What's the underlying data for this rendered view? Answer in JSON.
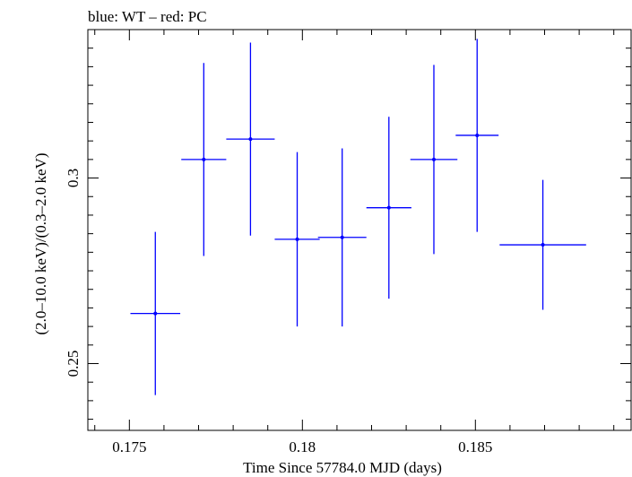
{
  "chart_data": {
    "type": "scatter",
    "title": "blue: WT – red: PC",
    "xlabel": "Time Since 57784.0 MJD (days)",
    "ylabel": "(2.0–10.0 keV)/(0.3–2.0 keV)",
    "xlim": [
      0.1738,
      0.1895
    ],
    "ylim": [
      0.232,
      0.34
    ],
    "x_ticks": [
      {
        "value": 0.175,
        "label": "0.175"
      },
      {
        "value": 0.18,
        "label": "0.18"
      },
      {
        "value": 0.185,
        "label": "0.185"
      }
    ],
    "y_ticks": [
      {
        "value": 0.25,
        "label": "0.25"
      },
      {
        "value": 0.3,
        "label": "0.3"
      }
    ],
    "grid": false,
    "legend": "none",
    "series": [
      {
        "color": "#0000ff",
        "points": [
          {
            "x": 0.17575,
            "xerr": 0.00072,
            "y": 0.2635,
            "yerr": 0.022
          },
          {
            "x": 0.17715,
            "xerr": 0.00065,
            "y": 0.305,
            "yerr": 0.026
          },
          {
            "x": 0.1785,
            "xerr": 0.0007,
            "y": 0.3105,
            "yerr": 0.026
          },
          {
            "x": 0.17985,
            "xerr": 0.00065,
            "y": 0.2835,
            "yerr": 0.0235
          },
          {
            "x": 0.18115,
            "xerr": 0.0007,
            "y": 0.284,
            "yerr": 0.024
          },
          {
            "x": 0.1825,
            "xerr": 0.00065,
            "y": 0.292,
            "yerr": 0.0245
          },
          {
            "x": 0.1838,
            "xerr": 0.00068,
            "y": 0.305,
            "yerr": 0.0255
          },
          {
            "x": 0.18505,
            "xerr": 0.00062,
            "y": 0.3115,
            "yerr": 0.026
          },
          {
            "x": 0.18695,
            "xerr": 0.00125,
            "y": 0.282,
            "yerr": 0.0175
          }
        ]
      }
    ]
  }
}
